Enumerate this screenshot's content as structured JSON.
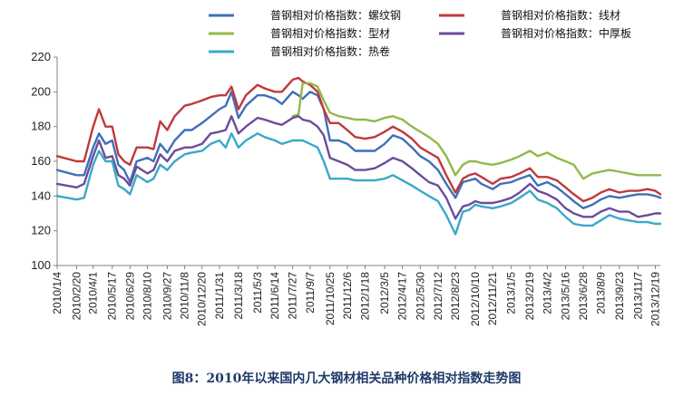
{
  "caption": "图8：2010年以来国内几大钢材相关品种价格相对指数走势图",
  "chart_data": {
    "type": "line",
    "title": "",
    "xlabel": "",
    "ylabel": "",
    "ylim": [
      100,
      220
    ],
    "yticks": [
      100,
      120,
      140,
      160,
      180,
      200,
      220
    ],
    "grid": false,
    "legend_position": "top",
    "x_tick_labels": [
      "2010/1/4",
      "2010/2/20",
      "2010/4/1",
      "2010/5/17",
      "2010/6/29",
      "2010/8/10",
      "2010/9/27",
      "2010/11/8",
      "2010/12/20",
      "2011/1/31",
      "2011/3/18",
      "2011/5/3",
      "2011/6/14",
      "2011/7/27",
      "2011/9/7",
      "2011/10/25",
      "2011/12/6",
      "2012/1/18",
      "2012/3/5",
      "2012/4/17",
      "2012/5/30",
      "2012/7/12",
      "2012/8/23",
      "2012/10/10",
      "2012/11/21",
      "2013/1/5",
      "2013/2/19",
      "2013/4/2",
      "2013/5/16",
      "2013/6/28",
      "2013/8/9",
      "2013/9/23",
      "2013/11/7",
      "2013/12/19"
    ],
    "x": [
      "2010/1/4",
      "2010/2/20",
      "2010/3/10",
      "2010/4/1",
      "2010/4/15",
      "2010/5/1",
      "2010/5/17",
      "2010/6/1",
      "2010/6/15",
      "2010/6/29",
      "2010/7/15",
      "2010/8/10",
      "2010/8/25",
      "2010/9/10",
      "2010/9/27",
      "2010/10/15",
      "2010/11/8",
      "2010/11/25",
      "2010/12/20",
      "2011/1/10",
      "2011/1/31",
      "2011/2/15",
      "2011/3/1",
      "2011/3/18",
      "2011/4/5",
      "2011/5/3",
      "2011/5/20",
      "2011/6/14",
      "2011/7/1",
      "2011/7/27",
      "2011/8/10",
      "2011/8/20",
      "2011/9/7",
      "2011/9/25",
      "2011/10/10",
      "2011/10/25",
      "2011/11/15",
      "2011/12/6",
      "2011/12/25",
      "2012/1/18",
      "2012/2/10",
      "2012/3/5",
      "2012/3/25",
      "2012/4/17",
      "2012/5/10",
      "2012/5/30",
      "2012/6/20",
      "2012/7/12",
      "2012/8/1",
      "2012/8/23",
      "2012/9/10",
      "2012/9/25",
      "2012/10/10",
      "2012/10/25",
      "2012/11/21",
      "2012/12/10",
      "2013/1/5",
      "2013/1/25",
      "2013/2/19",
      "2013/3/10",
      "2013/4/2",
      "2013/4/25",
      "2013/5/16",
      "2013/6/5",
      "2013/6/28",
      "2013/7/20",
      "2013/8/9",
      "2013/8/30",
      "2013/9/23",
      "2013/10/15",
      "2013/11/7",
      "2013/11/30",
      "2013/12/19",
      "2013/12/31"
    ],
    "series": [
      {
        "name": "普钢相对价格指数：螺纹钢",
        "color": "#3f6fba",
        "values": [
          155,
          152,
          152,
          168,
          176,
          170,
          172,
          158,
          155,
          148,
          160,
          162,
          160,
          170,
          165,
          172,
          178,
          178,
          182,
          186,
          190,
          192,
          200,
          185,
          192,
          198,
          198,
          196,
          193,
          200,
          198,
          196,
          200,
          198,
          190,
          172,
          172,
          170,
          166,
          166,
          166,
          170,
          175,
          173,
          168,
          163,
          160,
          155,
          147,
          139,
          148,
          149,
          150,
          147,
          144,
          147,
          148,
          150,
          152,
          146,
          148,
          145,
          141,
          137,
          133,
          135,
          138,
          140,
          139,
          140,
          141,
          141,
          140,
          139
        ]
      },
      {
        "name": "普钢相对价格指数：线材",
        "color": "#c0393b",
        "values": [
          163,
          160,
          160,
          180,
          190,
          180,
          180,
          164,
          160,
          158,
          168,
          168,
          167,
          183,
          178,
          186,
          192,
          193,
          195,
          197,
          198,
          198,
          203,
          190,
          198,
          204,
          202,
          200,
          200,
          207,
          208,
          206,
          204,
          200,
          190,
          182,
          182,
          178,
          174,
          173,
          174,
          177,
          180,
          177,
          173,
          168,
          165,
          162,
          152,
          142,
          150,
          152,
          153,
          151,
          147,
          150,
          151,
          153,
          156,
          151,
          151,
          149,
          145,
          141,
          137,
          139,
          142,
          144,
          142,
          143,
          143,
          144,
          143,
          141
        ]
      },
      {
        "name": "普钢相对价格指数：型材",
        "color": "#93b84a",
        "values": [
          null,
          null,
          null,
          null,
          null,
          null,
          null,
          null,
          null,
          null,
          null,
          null,
          null,
          null,
          null,
          null,
          null,
          null,
          null,
          null,
          null,
          null,
          null,
          null,
          null,
          null,
          null,
          null,
          null,
          186,
          187,
          205,
          205,
          203,
          195,
          188,
          186,
          185,
          184,
          184,
          183,
          185,
          186,
          184,
          180,
          177,
          174,
          170,
          163,
          152,
          158,
          160,
          160,
          159,
          158,
          159,
          161,
          163,
          166,
          163,
          165,
          162,
          160,
          158,
          150,
          153,
          154,
          155,
          154,
          153,
          152,
          152,
          152,
          152
        ]
      },
      {
        "name": "普钢相对价格指数：中厚板",
        "color": "#6b4c9a",
        "values": [
          147,
          145,
          147,
          163,
          172,
          162,
          163,
          152,
          150,
          146,
          157,
          153,
          155,
          164,
          160,
          166,
          168,
          168,
          170,
          176,
          177,
          178,
          186,
          176,
          180,
          185,
          184,
          182,
          181,
          185,
          186,
          184,
          183,
          180,
          175,
          162,
          160,
          158,
          155,
          155,
          156,
          159,
          162,
          160,
          156,
          152,
          148,
          146,
          139,
          127,
          134,
          135,
          137,
          136,
          136,
          137,
          139,
          142,
          147,
          143,
          141,
          138,
          133,
          130,
          128,
          128,
          131,
          133,
          131,
          131,
          128,
          129,
          130,
          130
        ]
      },
      {
        "name": "普钢相对价格指数：热卷",
        "color": "#3aa8c8",
        "values": [
          140,
          138,
          139,
          158,
          166,
          160,
          160,
          146,
          144,
          141,
          152,
          148,
          150,
          158,
          155,
          160,
          164,
          165,
          166,
          170,
          172,
          168,
          176,
          168,
          172,
          176,
          174,
          172,
          170,
          172,
          172,
          172,
          170,
          168,
          160,
          150,
          150,
          150,
          149,
          149,
          149,
          150,
          152,
          149,
          146,
          143,
          140,
          137,
          129,
          118,
          131,
          132,
          135,
          134,
          133,
          134,
          136,
          139,
          143,
          138,
          136,
          133,
          128,
          124,
          123,
          123,
          126,
          129,
          127,
          126,
          125,
          125,
          124,
          124
        ]
      }
    ]
  }
}
